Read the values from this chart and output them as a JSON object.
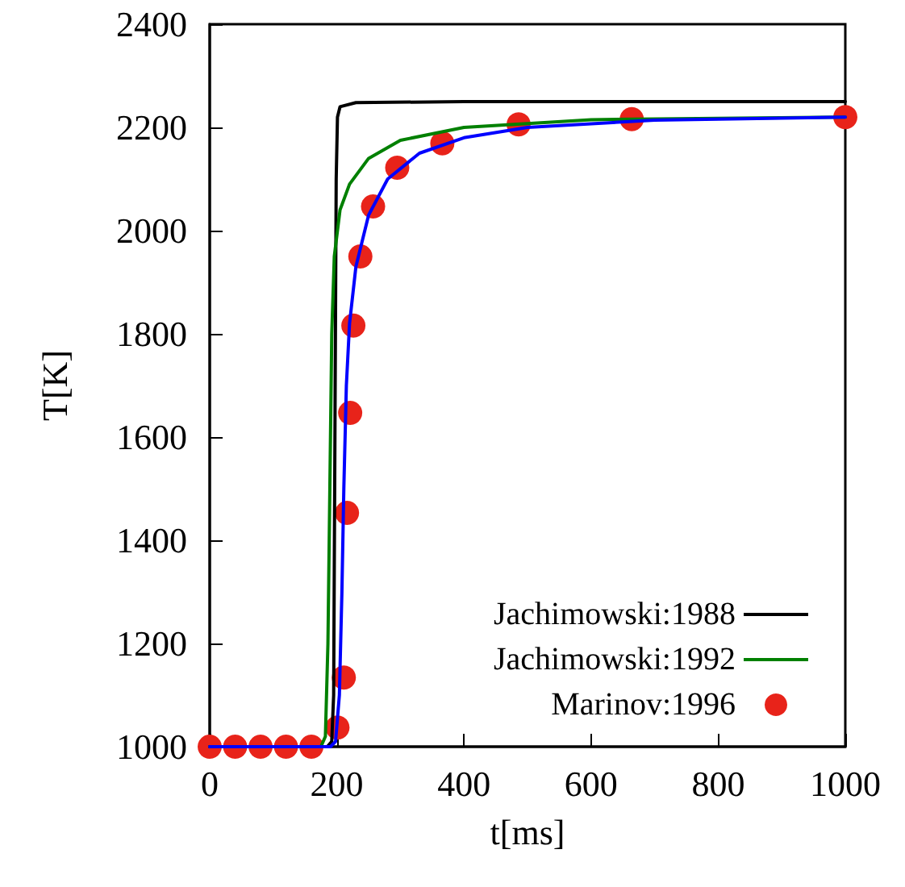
{
  "chart_data": {
    "type": "line",
    "xlabel": "t[ms]",
    "ylabel": "T[K]",
    "xlim": [
      0,
      1000
    ],
    "xticks": [
      0,
      200,
      400,
      600,
      800,
      1000
    ],
    "ylim": [
      1000,
      2400
    ],
    "yticks": [
      1000,
      1200,
      1400,
      1600,
      1800,
      2000,
      2200,
      2400
    ],
    "grid": false,
    "legend": "bottom right",
    "series": [
      {
        "name": "Jachimowski:1988",
        "color": "#000000",
        "marker": "none",
        "x": [
          0,
          185,
          192,
          195,
          197,
          199,
          201,
          205,
          230,
          400,
          1000
        ],
        "values": [
          1000,
          1000,
          1010,
          1100,
          1600,
          2100,
          2220,
          2240,
          2248,
          2250,
          2250
        ]
      },
      {
        "name": "Jachimowski:1992",
        "color": "#008000",
        "marker": "none",
        "x": [
          0,
          175,
          182,
          186,
          189,
          192,
          196,
          205,
          220,
          250,
          300,
          400,
          600,
          1000
        ],
        "values": [
          1000,
          1000,
          1020,
          1200,
          1500,
          1800,
          1950,
          2040,
          2090,
          2140,
          2175,
          2200,
          2215,
          2220
        ]
      },
      {
        "name": "Marinov:1996",
        "type": "scatter",
        "color": "#e8231a",
        "marker": "circle",
        "x": [
          0,
          40,
          80,
          120,
          160,
          201,
          211,
          216,
          221,
          226,
          237,
          257,
          295,
          366,
          486,
          664,
          1000
        ],
        "values": [
          1000,
          1000,
          1000,
          1000,
          1000,
          1037,
          1134,
          1453,
          1647,
          1816,
          1950,
          2047,
          2122,
          2169,
          2206,
          2216,
          2220
        ]
      },
      {
        "color": "#0000ff",
        "marker": "none",
        "x": [
          0,
          190,
          198,
          204,
          208,
          211,
          215,
          220,
          230,
          250,
          280,
          330,
          400,
          500,
          700,
          1000
        ],
        "values": [
          1000,
          1000,
          1010,
          1100,
          1300,
          1500,
          1700,
          1820,
          1930,
          2030,
          2100,
          2150,
          2180,
          2200,
          2214,
          2220
        ]
      }
    ]
  }
}
